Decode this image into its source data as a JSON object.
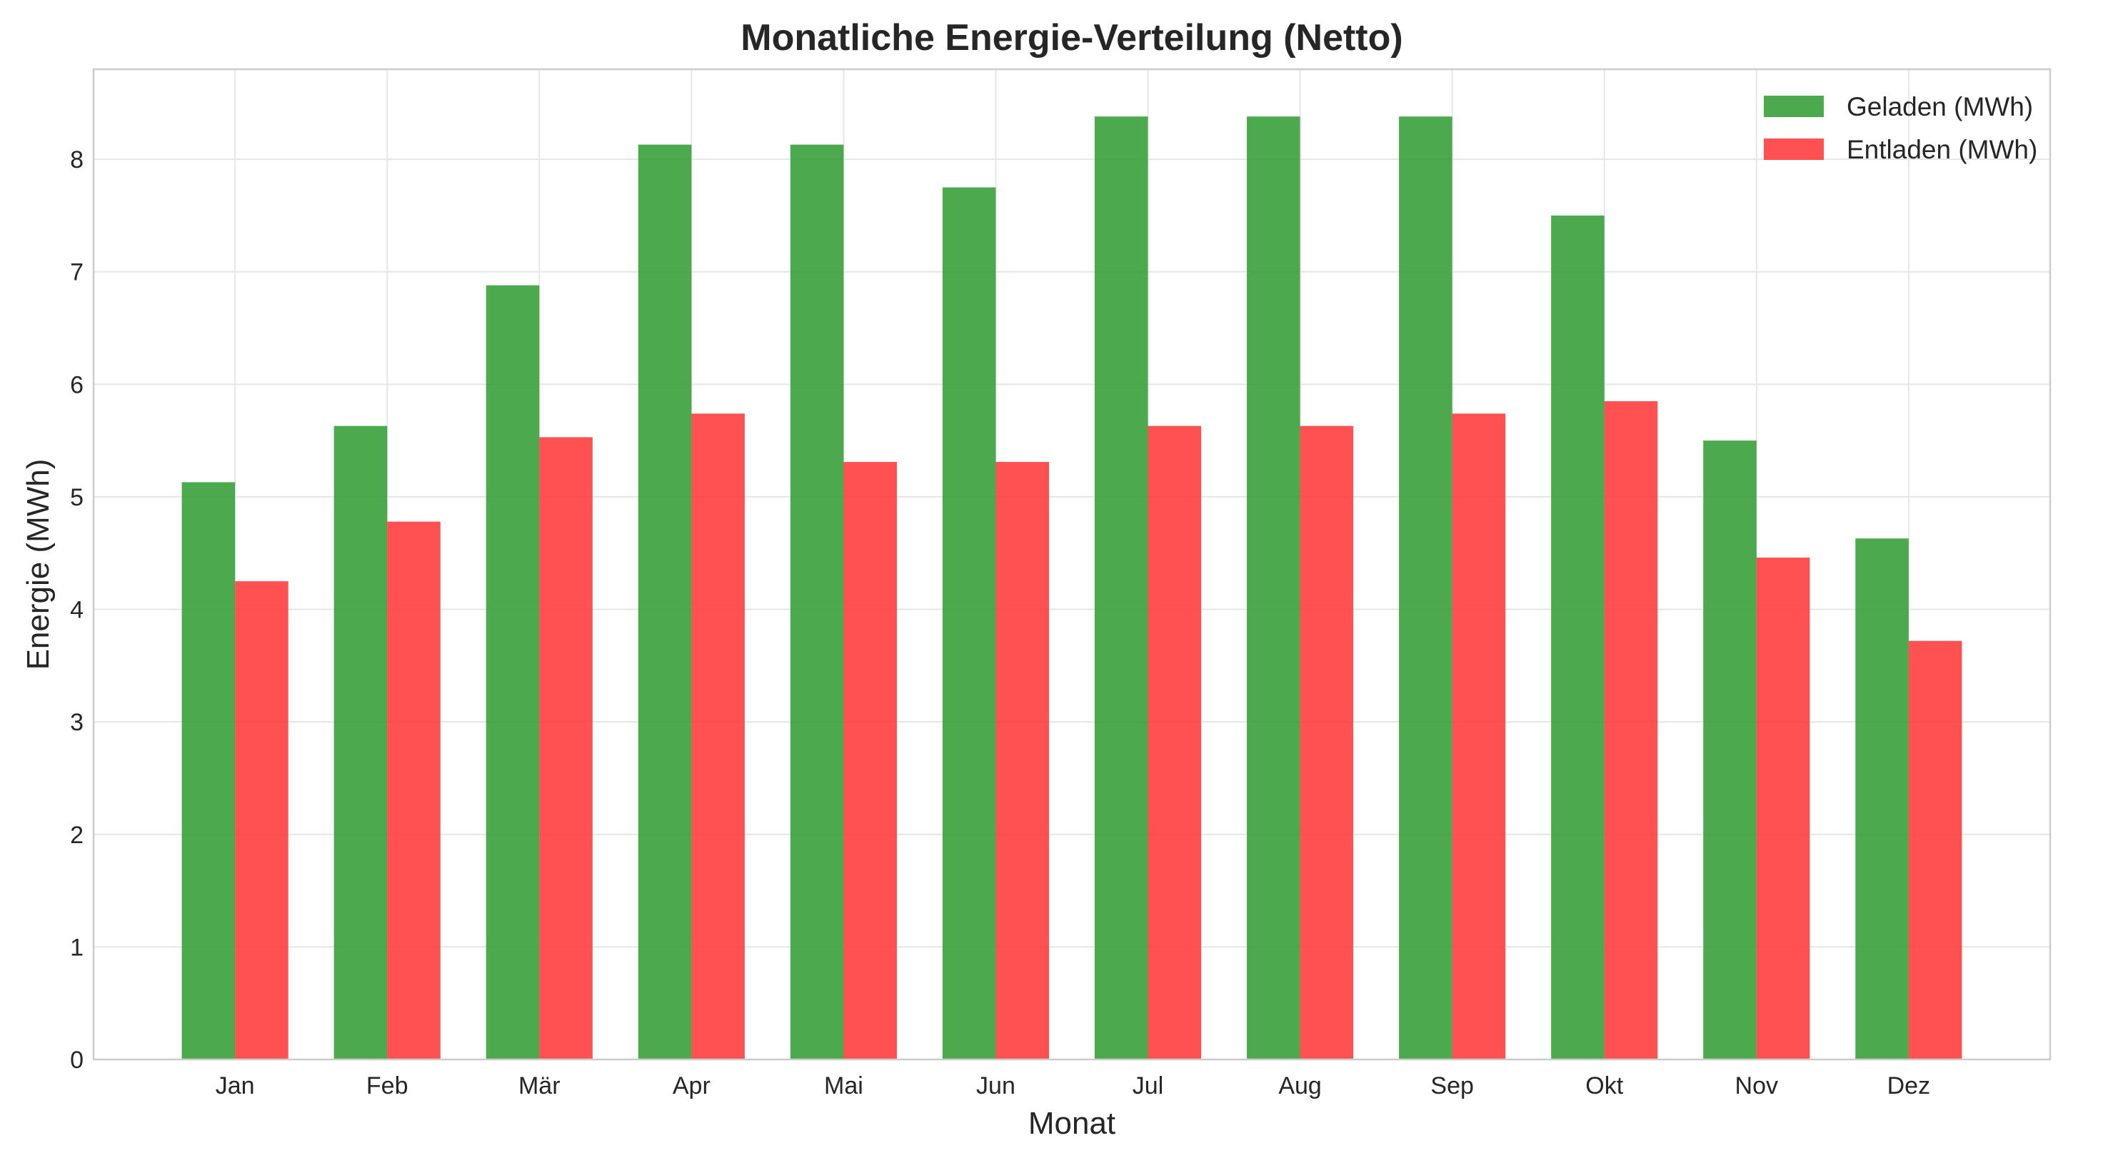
{
  "chart_data": {
    "type": "bar",
    "title": "Monatliche Energie-Verteilung (Netto)",
    "xlabel": "Monat",
    "ylabel": "Energie (MWh)",
    "categories": [
      "Jan",
      "Feb",
      "Mär",
      "Apr",
      "Mai",
      "Jun",
      "Jul",
      "Aug",
      "Sep",
      "Okt",
      "Nov",
      "Dez"
    ],
    "series": [
      {
        "name": "Geladen (MWh)",
        "color": "#2e9a2e",
        "values": [
          5.13,
          5.63,
          6.88,
          8.13,
          8.13,
          7.75,
          8.38,
          8.38,
          8.38,
          7.5,
          5.5,
          4.63
        ]
      },
      {
        "name": "Entladen (MWh)",
        "color": "#ff3333",
        "values": [
          4.25,
          4.78,
          5.53,
          5.74,
          5.31,
          5.31,
          5.63,
          5.63,
          5.74,
          5.85,
          4.46,
          3.72
        ]
      }
    ],
    "ylim": [
      0,
      8.8
    ],
    "yticks": [
      0,
      1,
      2,
      3,
      4,
      5,
      6,
      7,
      8
    ],
    "grid": true,
    "legend_position": "top-right"
  }
}
